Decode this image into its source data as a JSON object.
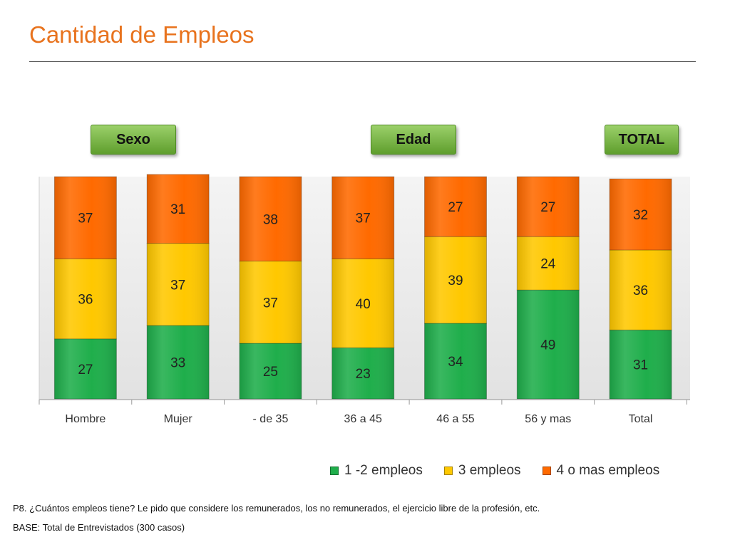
{
  "page": {
    "title": "Cantidad de Empleos",
    "groups": [
      {
        "label": "Sexo"
      },
      {
        "label": "Edad"
      },
      {
        "label": "TOTAL"
      }
    ],
    "notes": [
      "P8. ¿Cuántos empleos tiene? Le pido que considere los remunerados, los no remunerados, el ejercicio libre de la profesión, etc.",
      "BASE: Total de Entrevistados (300 casos)"
    ]
  },
  "chart_data": {
    "type": "bar",
    "stacked": true,
    "title": "",
    "xlabel": "",
    "ylabel": "",
    "ylim": [
      0,
      100
    ],
    "grid": false,
    "legend_position": "bottom-right",
    "categories": [
      "Hombre",
      "Mujer",
      "- de 35",
      "36 a 45",
      "46 a 55",
      "56 y mas",
      "Total"
    ],
    "series": [
      {
        "name": "1 -2 empleos",
        "color": "#1FAE4B",
        "values": [
          27,
          33,
          25,
          23,
          34,
          49,
          31
        ]
      },
      {
        "name": "3 empleos",
        "color": "#FFC800",
        "values": [
          36,
          37,
          37,
          40,
          39,
          24,
          36
        ]
      },
      {
        "name": "4 o mas empleos",
        "color": "#FF6A00",
        "values": [
          37,
          31,
          38,
          37,
          27,
          27,
          32
        ]
      }
    ]
  }
}
